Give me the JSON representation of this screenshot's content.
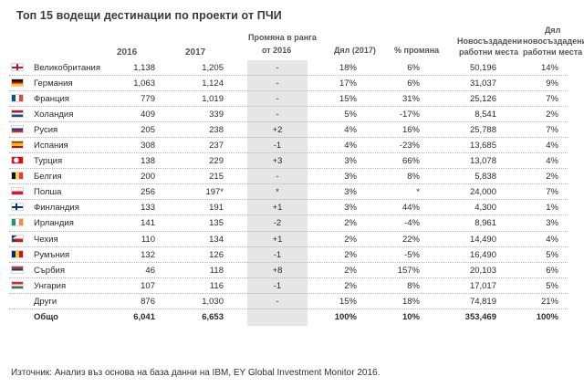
{
  "title": "Топ 15 водещи дестинации по проекти от ПЧИ",
  "headers": {
    "y2016": "2016",
    "y2017": "2017",
    "rank_change_l1": "Промяна в ранга",
    "rank_change_l2": "от 2016",
    "share_2017": "Дял (2017)",
    "change_pct": "% промяна",
    "new_jobs_l1": "Новосъздадени",
    "new_jobs_l2": "работни места",
    "jobs_share_l1": "Дял",
    "jobs_share_l2": "новосъздадени",
    "jobs_share_l3": "работни места"
  },
  "rows": [
    {
      "flag": "uk",
      "country": "Великобритания",
      "v2016": "1,138",
      "v2017": "1,205",
      "rank_change": "-",
      "share": "18%",
      "change": "6%",
      "jobs": "50,196",
      "jobs_share": "14%"
    },
    {
      "flag": "de",
      "country": "Германия",
      "v2016": "1,063",
      "v2017": "1,124",
      "rank_change": "-",
      "share": "17%",
      "change": "6%",
      "jobs": "31,037",
      "jobs_share": "9%"
    },
    {
      "flag": "fr",
      "country": "Франция",
      "v2016": "779",
      "v2017": "1,019",
      "rank_change": "-",
      "share": "15%",
      "change": "31%",
      "jobs": "25,126",
      "jobs_share": "7%"
    },
    {
      "flag": "nl",
      "country": "Холандия",
      "v2016": "409",
      "v2017": "339",
      "rank_change": "-",
      "share": "5%",
      "change": "-17%",
      "jobs": "8,541",
      "jobs_share": "2%"
    },
    {
      "flag": "ru",
      "country": "Русия",
      "v2016": "205",
      "v2017": "238",
      "rank_change": "+2",
      "share": "4%",
      "change": "16%",
      "jobs": "25,788",
      "jobs_share": "7%"
    },
    {
      "flag": "es",
      "country": "Испания",
      "v2016": "308",
      "v2017": "237",
      "rank_change": "-1",
      "share": "4%",
      "change": "-23%",
      "jobs": "13,685",
      "jobs_share": "4%"
    },
    {
      "flag": "tr",
      "country": "Турция",
      "v2016": "138",
      "v2017": "229",
      "rank_change": "+3",
      "share": "3%",
      "change": "66%",
      "jobs": "13,078",
      "jobs_share": "4%"
    },
    {
      "flag": "be",
      "country": "Белгия",
      "v2016": "200",
      "v2017": "215",
      "rank_change": "-",
      "share": "3%",
      "change": "8%",
      "jobs": "5,838",
      "jobs_share": "2%"
    },
    {
      "flag": "pl",
      "country": "Полша",
      "v2016": "256",
      "v2017": "197*",
      "rank_change": "*",
      "share": "3%",
      "change": "*",
      "jobs": "24,000",
      "jobs_share": "7%"
    },
    {
      "flag": "fi",
      "country": "Финландия",
      "v2016": "133",
      "v2017": "191",
      "rank_change": "+1",
      "share": "3%",
      "change": "44%",
      "jobs": "4,300",
      "jobs_share": "1%"
    },
    {
      "flag": "ie",
      "country": "Ирландия",
      "v2016": "141",
      "v2017": "135",
      "rank_change": "-2",
      "share": "2%",
      "change": "-4%",
      "jobs": "8,961",
      "jobs_share": "3%"
    },
    {
      "flag": "cz",
      "country": "Чехия",
      "v2016": "110",
      "v2017": "134",
      "rank_change": "+1",
      "share": "2%",
      "change": "22%",
      "jobs": "14,490",
      "jobs_share": "4%"
    },
    {
      "flag": "ro",
      "country": "Румъния",
      "v2016": "132",
      "v2017": "126",
      "rank_change": "-1",
      "share": "2%",
      "change": "-5%",
      "jobs": "16,490",
      "jobs_share": "5%"
    },
    {
      "flag": "rs",
      "country": "Сърбия",
      "v2016": "46",
      "v2017": "118",
      "rank_change": "+8",
      "share": "2%",
      "change": "157%",
      "jobs": "20,103",
      "jobs_share": "6%"
    },
    {
      "flag": "hu",
      "country": "Унгария",
      "v2016": "107",
      "v2017": "116",
      "rank_change": "-1",
      "share": "2%",
      "change": "8%",
      "jobs": "17,017",
      "jobs_share": "5%"
    },
    {
      "flag": "",
      "country": "Други",
      "v2016": "876",
      "v2017": "1,030",
      "rank_change": "-",
      "share": "15%",
      "change": "18%",
      "jobs": "74,819",
      "jobs_share": "21%"
    }
  ],
  "total": {
    "country": "Общо",
    "v2016": "6,041",
    "v2017": "6,653",
    "rank_change": "",
    "share": "100%",
    "change": "10%",
    "jobs": "353,469",
    "jobs_share": "100%"
  },
  "source": "Източник: Анализ въз основа на база данни на IBM, EY Global Investment Monitor 2016.",
  "colors": {
    "shade": "#e6e6e6",
    "text": "#2b2b2b",
    "header": "#555555"
  }
}
